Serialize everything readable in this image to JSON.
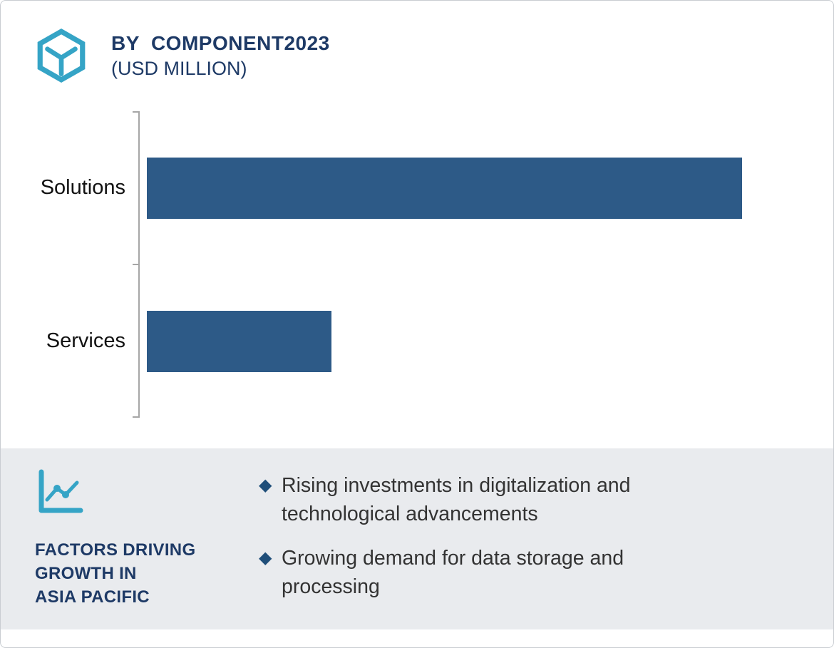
{
  "header": {
    "title": "BY  COMPONENT2023",
    "subtitle": "(USD MILLION)",
    "icon": "hexagon-logo-icon"
  },
  "chart_data": {
    "type": "bar",
    "orientation": "horizontal",
    "title": "BY COMPONENT 2023 (USD MILLION)",
    "categories": [
      "Solutions",
      "Services"
    ],
    "values": [
      100,
      31
    ],
    "value_axis_labels_shown": false,
    "xlabel": "",
    "ylabel": "",
    "xlim": [
      0,
      100
    ],
    "bar_color": "#2d5a87",
    "grid": false,
    "legend": false,
    "note": "no numeric axis or data labels visible; values are relative bar lengths (Solutions = 100, Services = 31)"
  },
  "panel": {
    "icon": "line-chart-icon",
    "heading_lines": [
      "FACTORS DRIVING",
      "GROWTH IN",
      "ASIA PACIFIC"
    ],
    "bullet_marker": "◆",
    "bullets": [
      "Rising investments in digitalization and technological advancements",
      "Growing demand for data storage and processing"
    ]
  },
  "colors": {
    "navy_text": "#1e3a66",
    "bar": "#2d5a87",
    "teal_icon": "#35a4c6",
    "panel_bg": "#e9ebee",
    "body_text": "#333333",
    "axis": "#a6a6a6"
  }
}
